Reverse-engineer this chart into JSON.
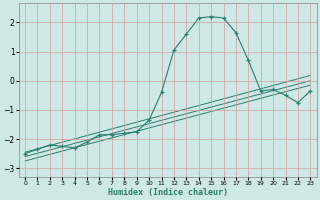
{
  "xlabel": "Humidex (Indice chaleur)",
  "bg_color": "#cde8e5",
  "grid_color": "#b8d4d0",
  "line_color": "#2e7d6e",
  "xlim": [
    -0.5,
    23.5
  ],
  "ylim": [
    -3.3,
    2.65
  ],
  "yticks": [
    -3,
    -2,
    -1,
    0,
    1,
    2
  ],
  "xticks": [
    0,
    1,
    2,
    3,
    4,
    5,
    6,
    7,
    8,
    9,
    10,
    11,
    12,
    13,
    14,
    15,
    16,
    17,
    18,
    19,
    20,
    21,
    22,
    23
  ],
  "main_x": [
    0,
    1,
    2,
    3,
    4,
    5,
    6,
    7,
    8,
    9,
    10,
    11,
    12,
    13,
    14,
    15,
    16,
    17,
    18,
    19,
    20,
    21,
    22,
    23
  ],
  "main_y": [
    -2.5,
    -2.35,
    -2.2,
    -2.25,
    -2.3,
    -2.1,
    -1.85,
    -1.85,
    -1.8,
    -1.75,
    -1.35,
    -0.4,
    1.05,
    1.6,
    2.15,
    2.2,
    2.15,
    1.65,
    0.7,
    -0.35,
    -0.3,
    -0.5,
    -0.75,
    -0.35
  ],
  "line1_x": [
    0,
    23
  ],
  "line1_y": [
    -2.75,
    -0.15
  ],
  "line2_x": [
    0,
    23
  ],
  "line2_y": [
    -2.6,
    0.0
  ],
  "line3_x": [
    0,
    23
  ],
  "line3_y": [
    -2.45,
    0.18
  ],
  "xlabel_fontsize": 6,
  "ytick_fontsize": 5.5,
  "xtick_fontsize": 4.5
}
